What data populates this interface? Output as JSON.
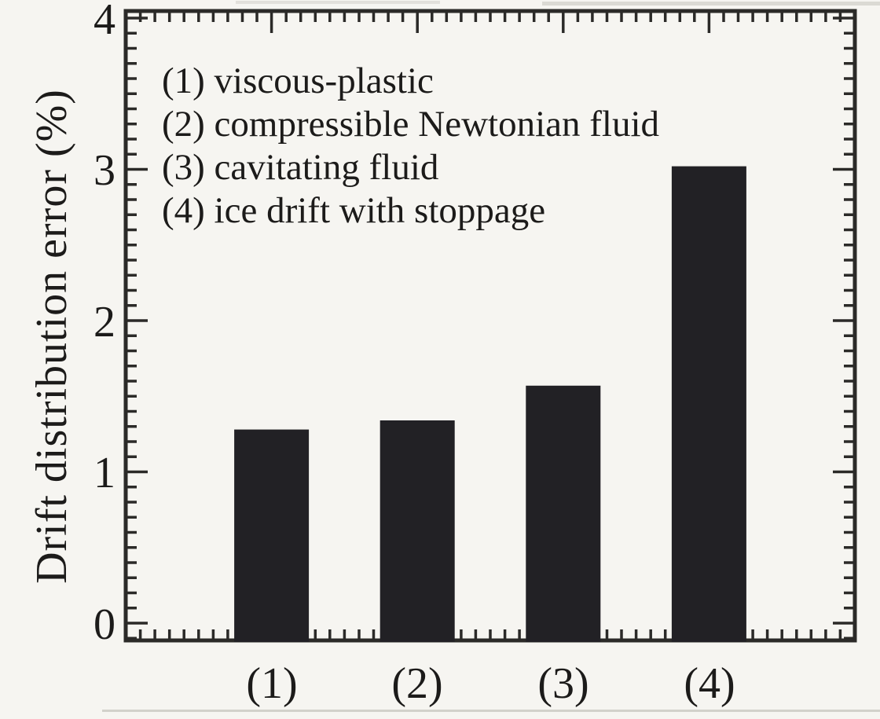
{
  "chart_data": {
    "type": "bar",
    "title": "",
    "xlabel": "",
    "ylabel": "Drift distribution error (%)",
    "categories": [
      "(1)",
      "(2)",
      "(3)",
      "(4)"
    ],
    "values": [
      1.28,
      1.34,
      1.57,
      3.02
    ],
    "ylim": [
      0,
      4
    ],
    "yticks": [
      0,
      1,
      2,
      3,
      4
    ],
    "y_minor_tick_step": 0.1,
    "x_minor_tick_step": 0.1,
    "grid": false,
    "legend_position": "inside-top-left",
    "legend_lines": [
      "(1) viscous-plastic",
      "(2) compressible Newtonian fluid",
      "(3) cavitating fluid",
      "(4) ice drift with stoppage"
    ]
  },
  "colors": {
    "background": "#f6f5f1",
    "bar": "#222125",
    "axis": "#2b2a28",
    "text": "#1c1b1a",
    "scan_artifact": "#c9c8c2"
  }
}
